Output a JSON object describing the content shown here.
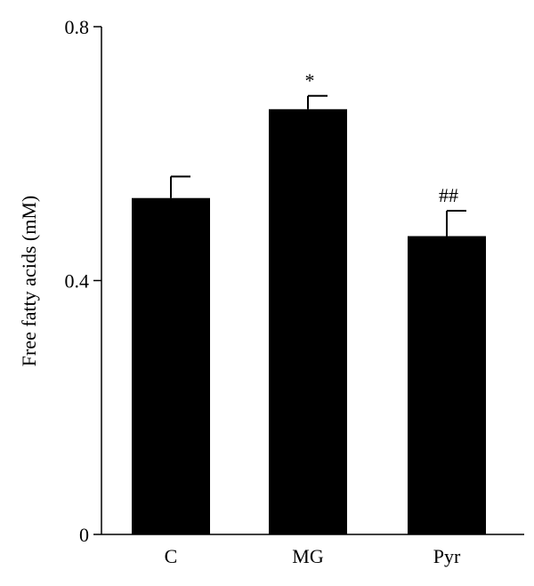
{
  "chart_data": {
    "type": "bar",
    "title": "",
    "xlabel": "",
    "ylabel": "Free fatty acids (mM)",
    "ylim": [
      0,
      0.8
    ],
    "yticks": [
      "0",
      "0.4",
      "0.8"
    ],
    "ytick_values": [
      0,
      0.4,
      0.8
    ],
    "categories": [
      "C",
      "MG",
      "Pyr"
    ],
    "values": [
      0.53,
      0.67,
      0.47
    ],
    "errors": [
      0.034,
      0.021,
      0.04
    ],
    "annotations": [
      "",
      "*",
      "##"
    ],
    "grid": false,
    "legend": "none",
    "bar_color": "#000000",
    "axis_color": "#000000"
  }
}
